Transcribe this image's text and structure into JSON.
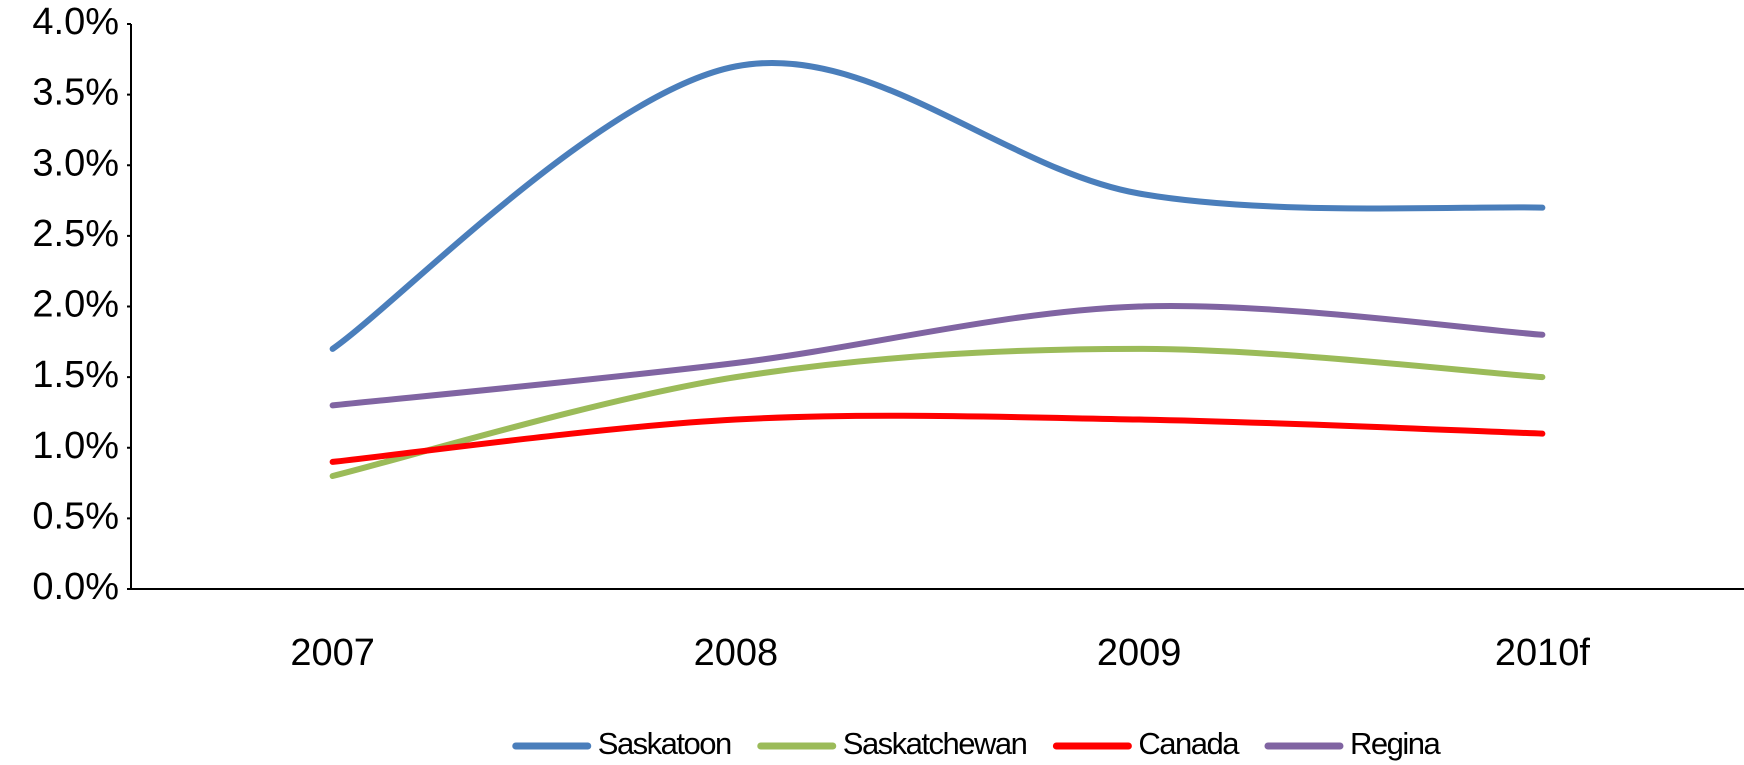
{
  "chart_data": {
    "type": "line",
    "categories": [
      "2007",
      "2008",
      "2009",
      "2010f"
    ],
    "series": [
      {
        "name": "Saskatoon",
        "color": "#4a7ebb",
        "values": [
          1.7,
          3.7,
          2.8,
          2.7
        ]
      },
      {
        "name": "Saskatchewan",
        "color": "#9bbb59",
        "values": [
          0.8,
          1.5,
          1.7,
          1.5
        ]
      },
      {
        "name": "Canada",
        "color": "#ff0000",
        "values": [
          0.9,
          1.2,
          1.2,
          1.1
        ]
      },
      {
        "name": "Regina",
        "color": "#8064a2",
        "values": [
          1.3,
          1.6,
          2.0,
          1.8
        ]
      }
    ],
    "ylim": [
      0,
      4
    ],
    "yticks": [
      {
        "value": 0,
        "label": "0.0%"
      },
      {
        "value": 0.5,
        "label": "0.5%"
      },
      {
        "value": 1,
        "label": "1.0%"
      },
      {
        "value": 1.5,
        "label": "1.5%"
      },
      {
        "value": 2,
        "label": "2.0%"
      },
      {
        "value": 2.5,
        "label": "2.5%"
      },
      {
        "value": 3,
        "label": "3.0%"
      },
      {
        "value": 3.5,
        "label": "3.5%"
      },
      {
        "value": 4,
        "label": "4.0%"
      }
    ],
    "smooth": true,
    "legend": "bottom"
  }
}
